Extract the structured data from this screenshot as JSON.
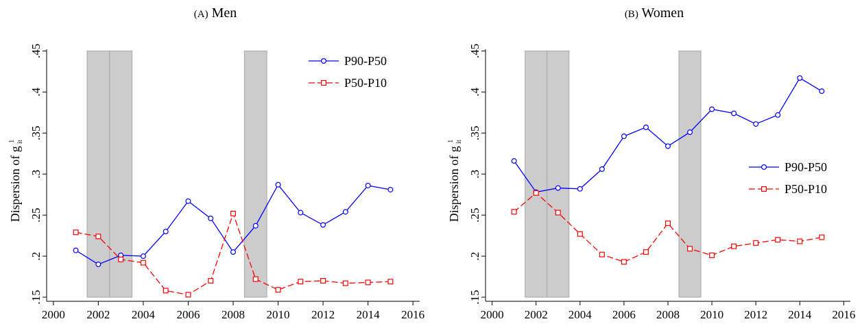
{
  "panels": [
    {
      "label": "(A)",
      "title": "Men",
      "chart_data": {
        "type": "line",
        "ylabel": "Dispersion of g",
        "ylabel_sup": "1",
        "ylabel_sub": "it",
        "xlim": [
          1999.7,
          2016.3
        ],
        "ylim": [
          0.145,
          0.452
        ],
        "xticks": [
          2000,
          2002,
          2004,
          2006,
          2008,
          2010,
          2012,
          2014,
          2016
        ],
        "yticks": [
          0.15,
          0.2,
          0.25,
          0.3,
          0.35,
          0.4,
          0.45
        ],
        "ytick_labels": [
          ".15",
          ".2",
          ".25",
          ".3",
          ".35",
          ".4",
          ".45"
        ],
        "shaded": [
          {
            "x0": 2001.5,
            "x1": 2002.5
          },
          {
            "x0": 2002.5,
            "x1": 2003.5
          },
          {
            "x0": 2008.5,
            "x1": 2009.5
          }
        ],
        "shade_ymax": 0.45,
        "legend_placement": "top-right",
        "grid": false,
        "series": [
          {
            "name": "P90-P50",
            "color": "#0000ff",
            "marker": "circle",
            "dash": "solid",
            "x": [
              2001,
              2002,
              2003,
              2004,
              2005,
              2006,
              2007,
              2008,
              2009,
              2010,
              2011,
              2012,
              2013,
              2014,
              2015
            ],
            "y": [
              0.207,
              0.19,
              0.201,
              0.2,
              0.23,
              0.267,
              0.246,
              0.205,
              0.237,
              0.287,
              0.253,
              0.238,
              0.254,
              0.286,
              0.281
            ]
          },
          {
            "name": "P50-P10",
            "color": "#ff0000",
            "marker": "square",
            "dash": "dashed",
            "x": [
              2001,
              2002,
              2003,
              2004,
              2005,
              2006,
              2007,
              2008,
              2009,
              2010,
              2011,
              2012,
              2013,
              2014,
              2015
            ],
            "y": [
              0.229,
              0.224,
              0.196,
              0.192,
              0.158,
              0.153,
              0.17,
              0.252,
              0.172,
              0.159,
              0.169,
              0.17,
              0.167,
              0.168,
              0.169
            ]
          }
        ]
      }
    },
    {
      "label": "(B)",
      "title": "Women",
      "chart_data": {
        "type": "line",
        "ylabel": "Dispersion of g",
        "ylabel_sup": "1",
        "ylabel_sub": "it",
        "xlim": [
          1999.7,
          2016.3
        ],
        "ylim": [
          0.145,
          0.452
        ],
        "xticks": [
          2000,
          2002,
          2004,
          2006,
          2008,
          2010,
          2012,
          2014,
          2016
        ],
        "yticks": [
          0.15,
          0.2,
          0.25,
          0.3,
          0.35,
          0.4,
          0.45
        ],
        "ytick_labels": [
          ".15",
          ".2",
          ".25",
          ".3",
          ".35",
          ".4",
          ".45"
        ],
        "shaded": [
          {
            "x0": 2001.5,
            "x1": 2002.5
          },
          {
            "x0": 2002.5,
            "x1": 2003.5
          },
          {
            "x0": 2008.5,
            "x1": 2009.5
          }
        ],
        "shade_ymax": 0.45,
        "legend_placement": "right",
        "grid": false,
        "series": [
          {
            "name": "P90-P50",
            "color": "#0000ff",
            "marker": "circle",
            "dash": "solid",
            "x": [
              2001,
              2002,
              2003,
              2004,
              2005,
              2006,
              2007,
              2008,
              2009,
              2010,
              2011,
              2012,
              2013,
              2014,
              2015
            ],
            "y": [
              0.316,
              0.278,
              0.283,
              0.282,
              0.306,
              0.346,
              0.357,
              0.334,
              0.351,
              0.379,
              0.374,
              0.361,
              0.372,
              0.417,
              0.401
            ]
          },
          {
            "name": "P50-P10",
            "color": "#ff0000",
            "marker": "square",
            "dash": "dashed",
            "x": [
              2001,
              2002,
              2003,
              2004,
              2005,
              2006,
              2007,
              2008,
              2009,
              2010,
              2011,
              2012,
              2013,
              2014,
              2015
            ],
            "y": [
              0.254,
              0.277,
              0.253,
              0.227,
              0.202,
              0.193,
              0.205,
              0.24,
              0.209,
              0.201,
              0.212,
              0.216,
              0.22,
              0.218,
              0.223
            ]
          }
        ]
      }
    }
  ]
}
